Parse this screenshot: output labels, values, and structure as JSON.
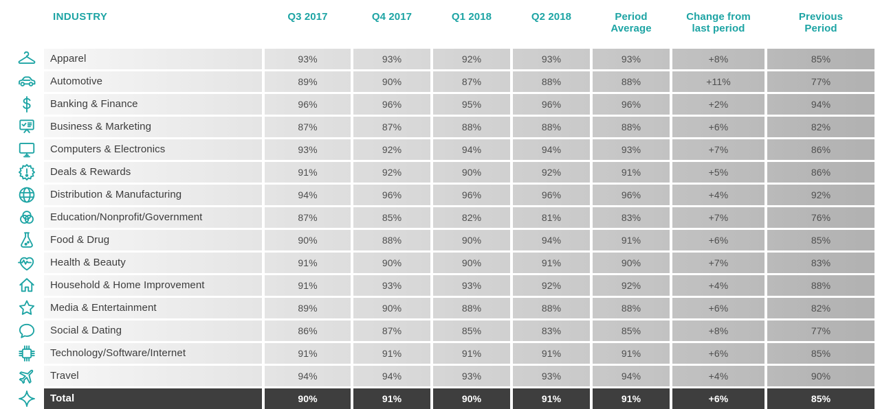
{
  "theme": {
    "accent": "#1da4a4",
    "total_bg": "#3e3e3e",
    "row_gradient_start": "#f7f7f7",
    "row_gradient_end": "#b1b1b1"
  },
  "table": {
    "columns": [
      "INDUSTRY",
      "Q3 2017",
      "Q4 2017",
      "Q1 2018",
      "Q2 2018",
      "Period\nAverage",
      "Change from\nlast period",
      "Previous\nPeriod"
    ],
    "rows": [
      {
        "icon": "hanger-icon",
        "label": "Apparel",
        "values": [
          "93%",
          "93%",
          "92%",
          "93%",
          "93%",
          "+8%",
          "85%"
        ]
      },
      {
        "icon": "car-icon",
        "label": "Automotive",
        "values": [
          "89%",
          "90%",
          "87%",
          "88%",
          "88%",
          "+11%",
          "77%"
        ]
      },
      {
        "icon": "dollar-icon",
        "label": "Banking & Finance",
        "values": [
          "96%",
          "96%",
          "95%",
          "96%",
          "96%",
          "+2%",
          "94%"
        ]
      },
      {
        "icon": "presentation-icon",
        "label": "Business & Marketing",
        "values": [
          "87%",
          "87%",
          "88%",
          "88%",
          "88%",
          "+6%",
          "82%"
        ]
      },
      {
        "icon": "monitor-icon",
        "label": "Computers & Electronics",
        "values": [
          "93%",
          "92%",
          "94%",
          "94%",
          "93%",
          "+7%",
          "86%"
        ]
      },
      {
        "icon": "badge-icon",
        "label": "Deals & Rewards",
        "values": [
          "91%",
          "92%",
          "90%",
          "92%",
          "91%",
          "+5%",
          "86%"
        ]
      },
      {
        "icon": "globe-icon",
        "label": "Distribution & Manufacturing",
        "values": [
          "94%",
          "96%",
          "96%",
          "96%",
          "96%",
          "+4%",
          "92%"
        ]
      },
      {
        "icon": "venn-icon",
        "label": "Education/Nonprofit/Government",
        "values": [
          "87%",
          "85%",
          "82%",
          "81%",
          "83%",
          "+7%",
          "76%"
        ]
      },
      {
        "icon": "flask-icon",
        "label": "Food & Drug",
        "values": [
          "90%",
          "88%",
          "90%",
          "94%",
          "91%",
          "+6%",
          "85%"
        ]
      },
      {
        "icon": "heart-pulse-icon",
        "label": "Health & Beauty",
        "values": [
          "91%",
          "90%",
          "90%",
          "91%",
          "90%",
          "+7%",
          "83%"
        ]
      },
      {
        "icon": "house-icon",
        "label": "Household & Home Improvement",
        "values": [
          "91%",
          "93%",
          "93%",
          "92%",
          "92%",
          "+4%",
          "88%"
        ]
      },
      {
        "icon": "star-icon",
        "label": "Media & Entertainment",
        "values": [
          "89%",
          "90%",
          "88%",
          "88%",
          "88%",
          "+6%",
          "82%"
        ]
      },
      {
        "icon": "speech-bubble-icon",
        "label": "Social & Dating",
        "values": [
          "86%",
          "87%",
          "85%",
          "83%",
          "85%",
          "+8%",
          "77%"
        ]
      },
      {
        "icon": "chip-icon",
        "label": "Technology/Software/Internet",
        "values": [
          "91%",
          "91%",
          "91%",
          "91%",
          "91%",
          "+6%",
          "85%"
        ]
      },
      {
        "icon": "airplane-icon",
        "label": "Travel",
        "values": [
          "94%",
          "94%",
          "93%",
          "93%",
          "94%",
          "+4%",
          "90%"
        ]
      }
    ],
    "total": {
      "icon": "sparkle-icon",
      "label": "Total",
      "values": [
        "90%",
        "91%",
        "90%",
        "91%",
        "91%",
        "+6%",
        "85%"
      ]
    }
  }
}
